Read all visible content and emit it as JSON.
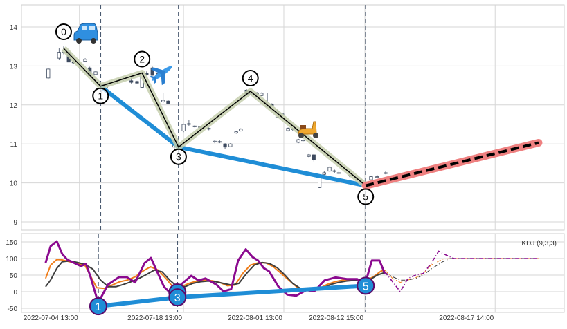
{
  "chart_data": [
    {
      "type": "candlestick",
      "panel": "price",
      "ylim": [
        8.8,
        14.5
      ],
      "yticks": [
        9,
        10,
        11,
        12,
        13,
        14
      ],
      "grid": true,
      "candles_format": [
        "idx",
        "open",
        "high",
        "low",
        "close"
      ],
      "candles": [
        [
          1.4,
          12.69,
          12.95,
          12.65,
          12.92
        ],
        [
          4.2,
          13.2,
          13.45,
          13.15,
          13.35
        ],
        [
          5.4,
          13.35,
          13.5,
          13.3,
          13.4
        ],
        [
          6.7,
          13.35,
          13.4,
          13.1,
          13.1
        ],
        [
          8,
          13.1,
          13.15,
          13.05,
          13.08
        ],
        [
          9.5,
          13.0,
          13.1,
          12.92,
          13.06
        ],
        [
          11,
          13.12,
          13.2,
          13.1,
          13.17
        ],
        [
          12.2,
          12.95,
          12.98,
          12.75,
          12.75
        ],
        [
          13.7,
          12.78,
          12.86,
          12.76,
          12.85
        ],
        [
          15.3,
          12.48,
          12.55,
          12.3,
          12.52
        ],
        [
          16.8,
          12.5,
          12.56,
          12.42,
          12.55
        ],
        [
          19,
          12.55,
          12.62,
          12.5,
          12.58
        ],
        [
          21,
          12.66,
          12.72,
          12.62,
          12.68
        ],
        [
          23,
          12.62,
          12.7,
          12.55,
          12.58
        ],
        [
          24.5,
          12.6,
          12.62,
          12.55,
          12.56
        ],
        [
          25.8,
          12.45,
          12.85,
          12.43,
          12.8
        ],
        [
          27,
          12.82,
          12.86,
          12.76,
          12.78
        ],
        [
          28.5,
          12.95,
          12.98,
          12.75,
          12.76
        ],
        [
          30,
          12.8,
          12.84,
          12.74,
          12.81
        ],
        [
          31.3,
          12.08,
          12.3,
          12.05,
          12.12
        ],
        [
          32.6,
          12.1,
          12.12,
          12.02,
          12.04
        ],
        [
          34.2,
          10.92,
          11.05,
          10.88,
          10.98
        ],
        [
          36.6,
          11.33,
          11.52,
          11.3,
          11.5
        ],
        [
          38,
          11.5,
          11.62,
          11.45,
          11.52
        ],
        [
          39.5,
          11.44,
          11.48,
          11.42,
          11.46
        ],
        [
          40.9,
          11.42,
          11.46,
          11.38,
          11.44
        ],
        [
          43.2,
          11.38,
          11.42,
          11.35,
          11.4
        ],
        [
          44.7,
          11.05,
          11.1,
          11.02,
          11.07
        ],
        [
          46,
          11.05,
          11.09,
          11.02,
          11.06
        ],
        [
          47.4,
          11.0,
          11.02,
          10.88,
          10.92
        ],
        [
          48.8,
          10.93,
          11.02,
          10.92,
          11.0
        ],
        [
          50.3,
          11.28,
          11.33,
          11.26,
          11.31
        ],
        [
          51.5,
          11.33,
          11.4,
          11.32,
          11.38
        ],
        [
          53,
          12.38,
          12.4,
          12.25,
          12.25
        ],
        [
          54.2,
          12.28,
          12.32,
          12.26,
          12.3
        ],
        [
          55.7,
          12.27,
          12.33,
          12.25,
          12.29
        ],
        [
          56.9,
          12.24,
          12.32,
          12.23,
          12.3
        ],
        [
          58.4,
          11.95,
          12.3,
          11.93,
          12.07
        ],
        [
          59.6,
          12.02,
          12.04,
          11.97,
          11.98
        ],
        [
          61,
          11.68,
          11.88,
          11.66,
          11.84
        ],
        [
          62.3,
          11.74,
          11.8,
          11.7,
          11.77
        ],
        [
          63.8,
          11.34,
          11.42,
          11.32,
          11.4
        ],
        [
          65,
          11.37,
          11.42,
          11.34,
          11.39
        ],
        [
          66.5,
          11.04,
          11.13,
          11.02,
          11.11
        ],
        [
          67.7,
          11.08,
          11.12,
          11.06,
          11.1
        ],
        [
          69.2,
          10.68,
          10.74,
          10.66,
          10.72
        ],
        [
          70.5,
          10.72,
          10.74,
          10.55,
          10.6
        ],
        [
          72,
          9.88,
          10.22,
          9.87,
          10.2
        ],
        [
          73.2,
          10.22,
          10.3,
          10.2,
          10.26
        ],
        [
          74.6,
          10.3,
          10.42,
          10.29,
          10.4
        ],
        [
          75.9,
          10.3,
          10.34,
          10.26,
          10.31
        ],
        [
          77,
          10.25,
          10.3,
          10.22,
          10.26
        ],
        [
          79.8,
          10.18,
          10.3,
          10.15,
          10.2
        ],
        [
          81.8,
          10.08,
          10.2,
          10.05,
          10.1
        ],
        [
          83,
          9.98,
          10.1,
          9.95,
          10.0
        ],
        [
          85.4,
          10.08,
          10.17,
          10.06,
          10.16
        ],
        [
          87,
          10.14,
          10.2,
          10.12,
          10.16
        ],
        [
          89.2,
          10.24,
          10.3,
          10.22,
          10.26
        ]
      ],
      "swing_path": {
        "idx": [
          5.4,
          15,
          25.8,
          35.3,
          54,
          84
        ],
        "values": [
          13.45,
          12.48,
          12.82,
          10.92,
          12.35,
          9.93
        ],
        "labels": [
          "0",
          "1",
          "2",
          "3",
          "4",
          "5"
        ]
      },
      "trend_line": {
        "idx": [
          15,
          35.3,
          84
        ],
        "values": [
          12.48,
          10.92,
          9.93
        ]
      },
      "forecast_line": {
        "idx": [
          84,
          129
        ],
        "values": [
          9.93,
          11.03
        ]
      },
      "vlines_idx": [
        15,
        35.3,
        84
      ],
      "icons": [
        "car-icon",
        "airplane-icon",
        "scooter-icon"
      ]
    },
    {
      "type": "line",
      "panel": "indicator",
      "title": "KDJ (9,3,3)",
      "ylim": [
        -55,
        160
      ],
      "yticks": [
        -50,
        0,
        50,
        100,
        150
      ],
      "grid": true,
      "xtick_idx": [
        9.5,
        36.6,
        62.7,
        83.8,
        117.7
      ],
      "xtick_labels": [
        "2022-07-04 13:00",
        "2022-07-18 13:00",
        "2022-08-01 13:00",
        "2022-08-12 15:00",
        "2022-08-17 14:00"
      ],
      "series": [
        {
          "name": "K",
          "color": "#f07d1a",
          "x": [
            0.7,
            2,
            3.6,
            5,
            7,
            9,
            11,
            12.5,
            14,
            16,
            18,
            20,
            22,
            24,
            26,
            28,
            30,
            32,
            34,
            36,
            38,
            40,
            42,
            44,
            46,
            48,
            50,
            52,
            54,
            56,
            58,
            60,
            62,
            64,
            66,
            68,
            70,
            72,
            74,
            76,
            78,
            80,
            82,
            84,
            86,
            88,
            89
          ],
          "values": [
            40,
            80,
            97,
            96,
            90,
            85,
            78,
            45,
            12,
            10,
            20,
            30,
            35,
            45,
            62,
            75,
            65,
            40,
            12,
            15,
            25,
            32,
            35,
            33,
            28,
            18,
            20,
            55,
            80,
            87,
            87,
            75,
            55,
            35,
            15,
            5,
            3,
            10,
            22,
            30,
            35,
            36,
            35,
            33,
            45,
            62,
            65
          ]
        },
        {
          "name": "D",
          "color": "#3d3d3d",
          "x": [
            0.7,
            2,
            3.6,
            5,
            7,
            9,
            11,
            13,
            15,
            17,
            19,
            21,
            23,
            25,
            27,
            29,
            31,
            33,
            35,
            37,
            39,
            41,
            43,
            45,
            47,
            49,
            51,
            53,
            55,
            57,
            59,
            61,
            63,
            65,
            67,
            69,
            71,
            73,
            75,
            77,
            79,
            81,
            83,
            85,
            87,
            89
          ],
          "values": [
            15,
            35,
            70,
            90,
            93,
            88,
            82,
            68,
            35,
            15,
            15,
            22,
            30,
            40,
            52,
            65,
            60,
            35,
            15,
            15,
            25,
            30,
            32,
            30,
            25,
            20,
            25,
            55,
            80,
            88,
            85,
            72,
            50,
            25,
            10,
            5,
            5,
            12,
            22,
            28,
            32,
            34,
            33,
            35,
            50,
            58
          ]
        },
        {
          "name": "J",
          "color": "#8b0a8f",
          "x": [
            0.7,
            2,
            3.6,
            5,
            6.3,
            8.6,
            9.9,
            11.2,
            12.3,
            14,
            15.1,
            16.9,
            19.8,
            21.8,
            24,
            26.5,
            28.1,
            29.7,
            31.5,
            33.9,
            35.9,
            38.6,
            40.5,
            42.3,
            45.2,
            47,
            49,
            50.8,
            52.8,
            54.6,
            56,
            57.5,
            58.9,
            61.3,
            63.6,
            65.9,
            68.6,
            70.6,
            73.3,
            76.2,
            79.1,
            81.8,
            83.8,
            85.6,
            87.6,
            89
          ],
          "values": [
            87,
            137,
            152,
            114,
            97,
            84,
            77,
            84,
            48,
            -18,
            -18,
            21,
            44,
            44,
            28,
            87,
            102,
            61,
            15,
            -12,
            21,
            48,
            34,
            40,
            21,
            1,
            8,
            94,
            128,
            104,
            94,
            71,
            61,
            15,
            -9,
            -12,
            5,
            1,
            34,
            43,
            38,
            38,
            21,
            94,
            94,
            54
          ]
        }
      ],
      "forecast_series": [
        {
          "name": "K",
          "x": [
            89,
            91,
            93,
            95,
            97,
            99,
            101,
            104,
            106,
            129
          ],
          "values": [
            65,
            40,
            28,
            35,
            42,
            55,
            80,
            98,
            100,
            100
          ]
        },
        {
          "name": "D",
          "x": [
            89,
            91,
            93,
            95,
            97,
            99,
            101,
            104,
            106,
            129
          ],
          "values": [
            58,
            45,
            35,
            35,
            40,
            50,
            68,
            90,
            100,
            100
          ]
        },
        {
          "name": "J",
          "x": [
            89,
            91,
            93,
            95,
            97,
            99,
            101,
            103,
            105,
            107,
            129
          ],
          "values": [
            60,
            30,
            0,
            40,
            50,
            55,
            85,
            122,
            110,
            100,
            100
          ]
        }
      ],
      "trend_line": {
        "idx": [
          14.4,
          35,
          84
        ],
        "values": [
          -44,
          -17,
          18
        ],
        "labels": [
          "1",
          "3",
          "5"
        ]
      },
      "vlines_idx": [
        14.4,
        35,
        84
      ]
    }
  ]
}
